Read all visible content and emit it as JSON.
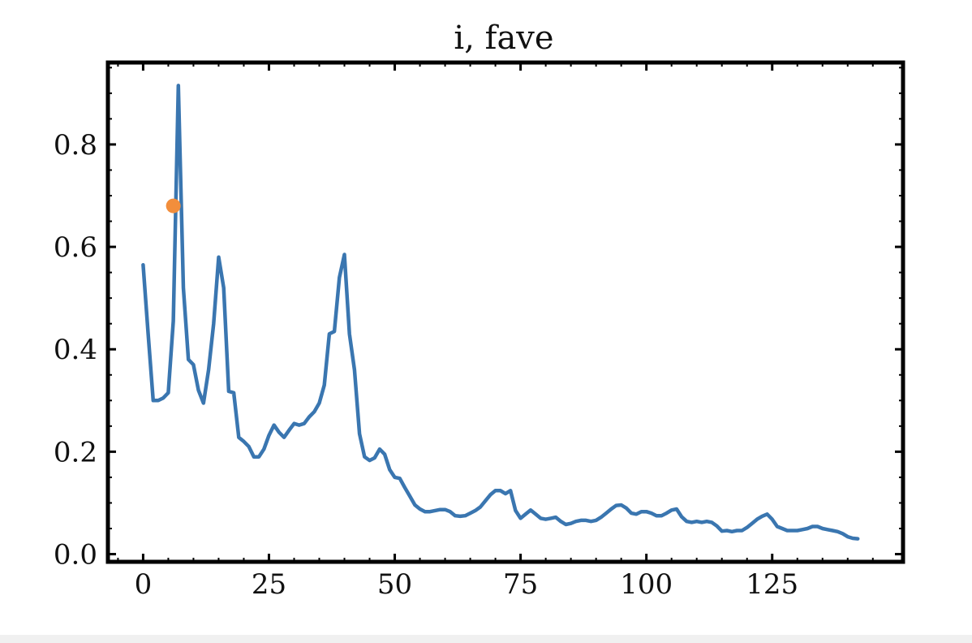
{
  "chart_data": {
    "type": "line",
    "title": "i, fave",
    "xlabel": "",
    "ylabel": "",
    "xlim": [
      -7,
      151
    ],
    "ylim": [
      -0.015,
      0.96
    ],
    "grid": false,
    "x_ticks": [
      0,
      25,
      50,
      75,
      100,
      125
    ],
    "y_ticks": [
      0.0,
      0.2,
      0.4,
      0.6,
      0.8
    ],
    "x_tick_labels": [
      "0",
      "25",
      "50",
      "75",
      "100",
      "125"
    ],
    "y_tick_labels": [
      "0.0",
      "0.2",
      "0.4",
      "0.6",
      "0.8"
    ],
    "series": [
      {
        "color": "#3a76b0",
        "points": [
          [
            0,
            0.565
          ],
          [
            1,
            0.43
          ],
          [
            2,
            0.3
          ],
          [
            3,
            0.3
          ],
          [
            4,
            0.305
          ],
          [
            5,
            0.315
          ],
          [
            6,
            0.455
          ],
          [
            7,
            0.915
          ],
          [
            8,
            0.52
          ],
          [
            9,
            0.38
          ],
          [
            10,
            0.37
          ],
          [
            11,
            0.32
          ],
          [
            12,
            0.295
          ],
          [
            13,
            0.36
          ],
          [
            14,
            0.45
          ],
          [
            15,
            0.58
          ],
          [
            16,
            0.52
          ],
          [
            17,
            0.318
          ],
          [
            18,
            0.315
          ],
          [
            19,
            0.228
          ],
          [
            20,
            0.22
          ],
          [
            21,
            0.21
          ],
          [
            22,
            0.19
          ],
          [
            23,
            0.19
          ],
          [
            24,
            0.205
          ],
          [
            25,
            0.232
          ],
          [
            26,
            0.252
          ],
          [
            27,
            0.238
          ],
          [
            28,
            0.228
          ],
          [
            29,
            0.242
          ],
          [
            30,
            0.255
          ],
          [
            31,
            0.252
          ],
          [
            32,
            0.255
          ],
          [
            33,
            0.268
          ],
          [
            34,
            0.278
          ],
          [
            35,
            0.295
          ],
          [
            36,
            0.33
          ],
          [
            37,
            0.43
          ],
          [
            38,
            0.435
          ],
          [
            39,
            0.54
          ],
          [
            40,
            0.585
          ],
          [
            41,
            0.43
          ],
          [
            42,
            0.36
          ],
          [
            43,
            0.235
          ],
          [
            44,
            0.19
          ],
          [
            45,
            0.183
          ],
          [
            46,
            0.188
          ],
          [
            47,
            0.205
          ],
          [
            48,
            0.195
          ],
          [
            49,
            0.165
          ],
          [
            50,
            0.15
          ],
          [
            51,
            0.148
          ],
          [
            52,
            0.13
          ],
          [
            53,
            0.113
          ],
          [
            54,
            0.096
          ],
          [
            55,
            0.088
          ],
          [
            56,
            0.083
          ],
          [
            57,
            0.083
          ],
          [
            58,
            0.085
          ],
          [
            59,
            0.087
          ],
          [
            60,
            0.087
          ],
          [
            61,
            0.083
          ],
          [
            62,
            0.075
          ],
          [
            63,
            0.074
          ],
          [
            64,
            0.075
          ],
          [
            65,
            0.08
          ],
          [
            66,
            0.085
          ],
          [
            67,
            0.092
          ],
          [
            68,
            0.104
          ],
          [
            69,
            0.116
          ],
          [
            70,
            0.124
          ],
          [
            71,
            0.124
          ],
          [
            72,
            0.118
          ],
          [
            73,
            0.124
          ],
          [
            74,
            0.085
          ],
          [
            75,
            0.07
          ],
          [
            76,
            0.078
          ],
          [
            77,
            0.086
          ],
          [
            78,
            0.078
          ],
          [
            79,
            0.07
          ],
          [
            80,
            0.068
          ],
          [
            81,
            0.07
          ],
          [
            82,
            0.072
          ],
          [
            83,
            0.064
          ],
          [
            84,
            0.058
          ],
          [
            85,
            0.06
          ],
          [
            86,
            0.064
          ],
          [
            87,
            0.066
          ],
          [
            88,
            0.066
          ],
          [
            89,
            0.064
          ],
          [
            90,
            0.066
          ],
          [
            91,
            0.072
          ],
          [
            92,
            0.08
          ],
          [
            93,
            0.088
          ],
          [
            94,
            0.095
          ],
          [
            95,
            0.096
          ],
          [
            96,
            0.09
          ],
          [
            97,
            0.08
          ],
          [
            98,
            0.078
          ],
          [
            99,
            0.083
          ],
          [
            100,
            0.083
          ],
          [
            101,
            0.08
          ],
          [
            102,
            0.075
          ],
          [
            103,
            0.075
          ],
          [
            104,
            0.08
          ],
          [
            105,
            0.086
          ],
          [
            106,
            0.088
          ],
          [
            107,
            0.073
          ],
          [
            108,
            0.064
          ],
          [
            109,
            0.062
          ],
          [
            110,
            0.064
          ],
          [
            111,
            0.062
          ],
          [
            112,
            0.064
          ],
          [
            113,
            0.062
          ],
          [
            114,
            0.055
          ],
          [
            115,
            0.045
          ],
          [
            116,
            0.046
          ],
          [
            117,
            0.044
          ],
          [
            118,
            0.046
          ],
          [
            119,
            0.046
          ],
          [
            120,
            0.052
          ],
          [
            121,
            0.06
          ],
          [
            122,
            0.068
          ],
          [
            123,
            0.074
          ],
          [
            124,
            0.078
          ],
          [
            125,
            0.068
          ],
          [
            126,
            0.054
          ],
          [
            127,
            0.05
          ],
          [
            128,
            0.046
          ],
          [
            129,
            0.046
          ],
          [
            130,
            0.046
          ],
          [
            131,
            0.048
          ],
          [
            132,
            0.05
          ],
          [
            133,
            0.054
          ],
          [
            134,
            0.054
          ],
          [
            135,
            0.05
          ],
          [
            136,
            0.048
          ],
          [
            137,
            0.046
          ],
          [
            138,
            0.044
          ],
          [
            139,
            0.04
          ],
          [
            140,
            0.034
          ],
          [
            141,
            0.031
          ],
          [
            142,
            0.03
          ]
        ]
      }
    ],
    "marker": {
      "x": 6,
      "y": 0.68,
      "color": "#f28e3c"
    }
  }
}
